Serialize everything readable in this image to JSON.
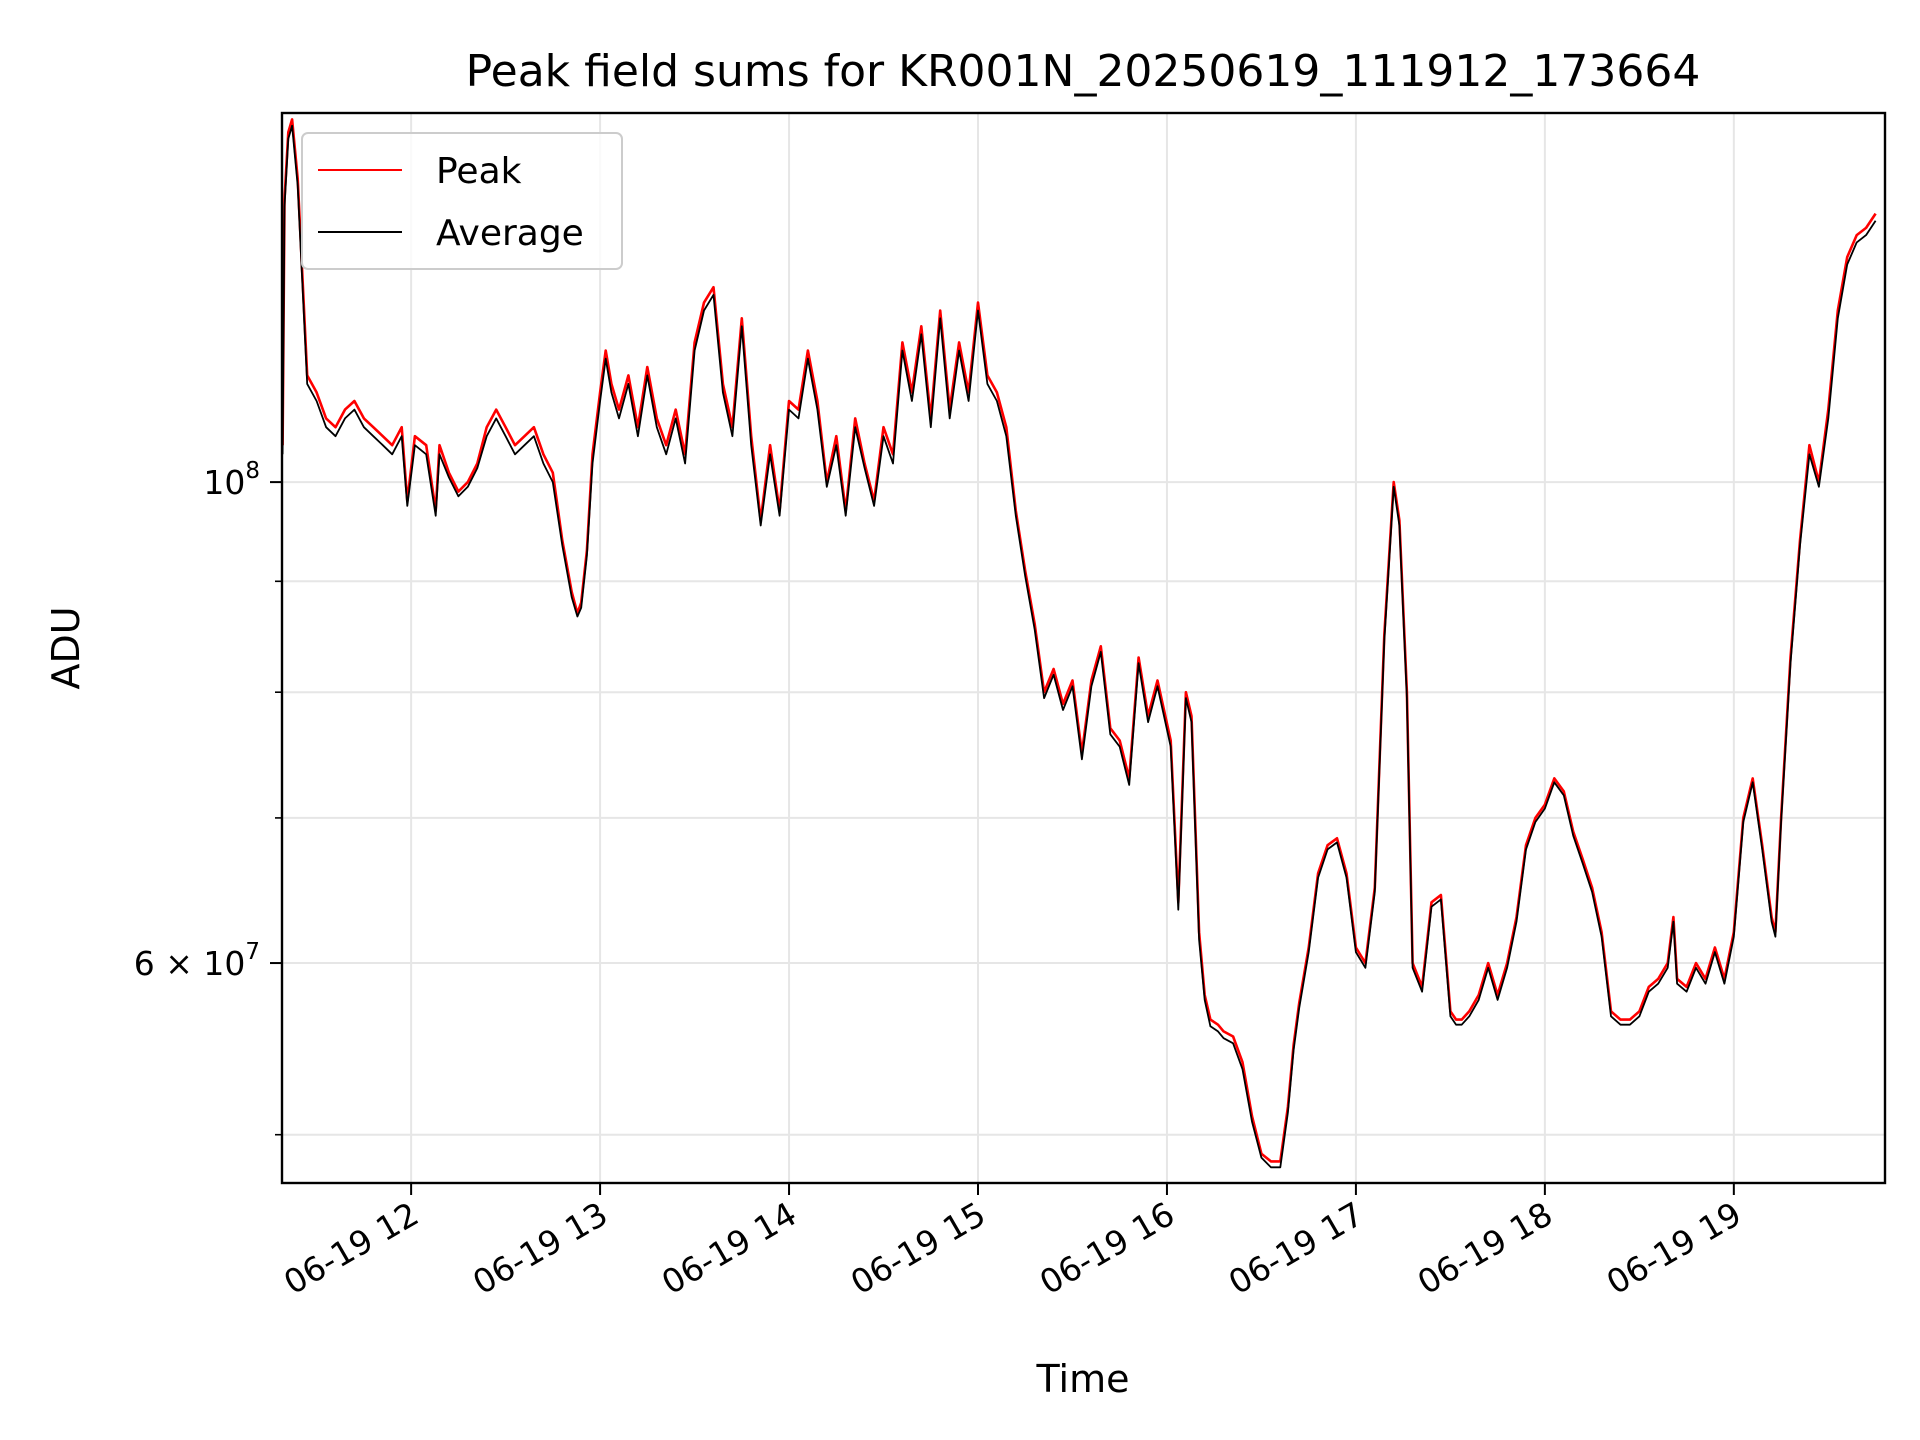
{
  "chart_data": {
    "type": "line",
    "title": "Peak field sums for KR001N_20250619_111912_173664",
    "xlabel": "Time",
    "ylabel": "ADU",
    "y_scale": "log",
    "grid": true,
    "legend_placement": "upper-left",
    "xlim": [
      "2025-06-19 11:19",
      "2025-06-19 19:48"
    ],
    "ylim": [
      47500000,
      148000000
    ],
    "x_ticks": [
      "06-19 12",
      "06-19 13",
      "06-19 14",
      "06-19 15",
      "06-19 16",
      "06-19 17",
      "06-19 18",
      "06-19 19"
    ],
    "y_major_ticks": [
      {
        "value": 100000000,
        "label": "10^8",
        "base": "10",
        "exp": "8"
      },
      {
        "value": 60000000,
        "label": "6×10^7",
        "base": "6 × 10",
        "exp": "7"
      }
    ],
    "y_minor_ticks": [
      50000000,
      70000000,
      80000000,
      90000000
    ],
    "x_time_hours": [
      11.32,
      11.33,
      11.35,
      11.37,
      11.4,
      11.45,
      11.5,
      11.55,
      11.6,
      11.65,
      11.7,
      11.75,
      11.8,
      11.85,
      11.9,
      11.95,
      11.98,
      12.02,
      12.08,
      12.13,
      12.15,
      12.2,
      12.25,
      12.3,
      12.35,
      12.4,
      12.45,
      12.5,
      12.55,
      12.6,
      12.65,
      12.7,
      12.75,
      12.8,
      12.85,
      12.88,
      12.9,
      12.93,
      12.96,
      13.0,
      13.03,
      13.06,
      13.1,
      13.15,
      13.2,
      13.25,
      13.3,
      13.35,
      13.4,
      13.45,
      13.5,
      13.55,
      13.6,
      13.65,
      13.7,
      13.75,
      13.8,
      13.85,
      13.9,
      13.95,
      14.0,
      14.05,
      14.1,
      14.15,
      14.2,
      14.25,
      14.3,
      14.35,
      14.4,
      14.45,
      14.5,
      14.55,
      14.6,
      14.65,
      14.7,
      14.75,
      14.8,
      14.85,
      14.9,
      14.95,
      15.0,
      15.05,
      15.1,
      15.15,
      15.2,
      15.25,
      15.3,
      15.35,
      15.4,
      15.45,
      15.5,
      15.55,
      15.6,
      15.65,
      15.7,
      15.75,
      15.8,
      15.85,
      15.9,
      15.95,
      16.02,
      16.06,
      16.1,
      16.13,
      16.17,
      16.2,
      16.23,
      16.27,
      16.3,
      16.35,
      16.4,
      16.45,
      16.5,
      16.55,
      16.6,
      16.64,
      16.67,
      16.7,
      16.75,
      16.8,
      16.85,
      16.9,
      16.95,
      17.0,
      17.05,
      17.1,
      17.15,
      17.2,
      17.23,
      17.27,
      17.3,
      17.35,
      17.4,
      17.45,
      17.5,
      17.53,
      17.56,
      17.6,
      17.65,
      17.7,
      17.75,
      17.8,
      17.85,
      17.9,
      17.95,
      18.0,
      18.05,
      18.1,
      18.15,
      18.2,
      18.25,
      18.3,
      18.35,
      18.4,
      18.45,
      18.5,
      18.55,
      18.6,
      18.65,
      18.68,
      18.7,
      18.75,
      18.8,
      18.85,
      18.9,
      18.95,
      19.0,
      19.05,
      19.1,
      19.15,
      19.2,
      19.22,
      19.25,
      19.3,
      19.35,
      19.4,
      19.45,
      19.5,
      19.55,
      19.6,
      19.65,
      19.7,
      19.75,
      19.8
    ],
    "series": [
      {
        "name": "Peak",
        "color": "#ff0000",
        "values": [
          104000000,
          135000000,
          145000000,
          147000000,
          138000000,
          112000000,
          110000000,
          107000000,
          106000000,
          108000000,
          109000000,
          107000000,
          106000000,
          105000000,
          104000000,
          106000000,
          98000000,
          105000000,
          104000000,
          97000000,
          104000000,
          101000000,
          99000000,
          100000000,
          102000000,
          106000000,
          108000000,
          106000000,
          104000000,
          105000000,
          106000000,
          103000000,
          101000000,
          94000000,
          89000000,
          87000000,
          88000000,
          93000000,
          103000000,
          110000000,
          115000000,
          111000000,
          108000000,
          112000000,
          106000000,
          113000000,
          107000000,
          104000000,
          108000000,
          103000000,
          116000000,
          121000000,
          123000000,
          111000000,
          106000000,
          119000000,
          105000000,
          96000000,
          104000000,
          97000000,
          109000000,
          108000000,
          115000000,
          109000000,
          100000000,
          105000000,
          97000000,
          107000000,
          102000000,
          98000000,
          106000000,
          103000000,
          116000000,
          110000000,
          118000000,
          107000000,
          120000000,
          108000000,
          116000000,
          110000000,
          121000000,
          112000000,
          110000000,
          106000000,
          97000000,
          91000000,
          86000000,
          80000000,
          82000000,
          79000000,
          81000000,
          75000000,
          81000000,
          84000000,
          77000000,
          76000000,
          73000000,
          83000000,
          78000000,
          81000000,
          76000000,
          64000000,
          80000000,
          78000000,
          62000000,
          58000000,
          56500000,
          56200000,
          55800000,
          55500000,
          54000000,
          51000000,
          49000000,
          48600000,
          48600000,
          51500000,
          55000000,
          57500000,
          61000000,
          66000000,
          68000000,
          68500000,
          66000000,
          61000000,
          60000000,
          65000000,
          85000000,
          100000000,
          96000000,
          80000000,
          60000000,
          58500000,
          64000000,
          64500000,
          57000000,
          56500000,
          56500000,
          57000000,
          58000000,
          60000000,
          58000000,
          60000000,
          63000000,
          68000000,
          70000000,
          71000000,
          73000000,
          72000000,
          69000000,
          67000000,
          65000000,
          62000000,
          57000000,
          56500000,
          56500000,
          57000000,
          58500000,
          59000000,
          60000000,
          63000000,
          59000000,
          58500000,
          60000000,
          59000000,
          61000000,
          59000000,
          62000000,
          70000000,
          73000000,
          68000000,
          63000000,
          62000000,
          70000000,
          83000000,
          94000000,
          104000000,
          100000000,
          108000000,
          120000000,
          127000000,
          130000000,
          131000000,
          133000000
        ]
      },
      {
        "name": "Average",
        "color": "#000000",
        "values": [
          103000000,
          134000000,
          144000000,
          146000000,
          137000000,
          111000000,
          109000000,
          106000000,
          105000000,
          107000000,
          108000000,
          106000000,
          105000000,
          104000000,
          103000000,
          105000000,
          97500000,
          104000000,
          103000000,
          96500000,
          103000000,
          100500000,
          98500000,
          99500000,
          101500000,
          105000000,
          107000000,
          105000000,
          103000000,
          104000000,
          105000000,
          102000000,
          100000000,
          93500000,
          88500000,
          86700000,
          87500000,
          92500000,
          102000000,
          109000000,
          114000000,
          110000000,
          107000000,
          111000000,
          105000000,
          112000000,
          106000000,
          103000000,
          107000000,
          102000000,
          115000000,
          120000000,
          122000000,
          110000000,
          105000000,
          118000000,
          104000000,
          95500000,
          103000000,
          96500000,
          108000000,
          107000000,
          114000000,
          108000000,
          99500000,
          104000000,
          96500000,
          106000000,
          101500000,
          97500000,
          105000000,
          102000000,
          115000000,
          109000000,
          117000000,
          106000000,
          119000000,
          107000000,
          115000000,
          109000000,
          120000000,
          111000000,
          109000000,
          105000000,
          96500000,
          90500000,
          85500000,
          79500000,
          81500000,
          78500000,
          80500000,
          74500000,
          80500000,
          83500000,
          76500000,
          75500000,
          72500000,
          82500000,
          77500000,
          80500000,
          75500000,
          63500000,
          79500000,
          77500000,
          61500000,
          57700000,
          56100000,
          55800000,
          55400000,
          55100000,
          53600000,
          50700000,
          48800000,
          48300000,
          48300000,
          51200000,
          54700000,
          57200000,
          60700000,
          65700000,
          67700000,
          68200000,
          65700000,
          60700000,
          59700000,
          64700000,
          84500000,
          99500000,
          95500000,
          79500000,
          59700000,
          58200000,
          63700000,
          64200000,
          56700000,
          56200000,
          56200000,
          56700000,
          57700000,
          59700000,
          57700000,
          59700000,
          62700000,
          67700000,
          69700000,
          70700000,
          72700000,
          71700000,
          68700000,
          66700000,
          64700000,
          61700000,
          56700000,
          56200000,
          56200000,
          56700000,
          58200000,
          58700000,
          59700000,
          62700000,
          58700000,
          58200000,
          59700000,
          58700000,
          60700000,
          58700000,
          61700000,
          69700000,
          72700000,
          67700000,
          62700000,
          61700000,
          69700000,
          82500000,
          93500000,
          103000000,
          99500000,
          107000000,
          119000000,
          126000000,
          129000000,
          130000000,
          132000000
        ]
      }
    ]
  }
}
